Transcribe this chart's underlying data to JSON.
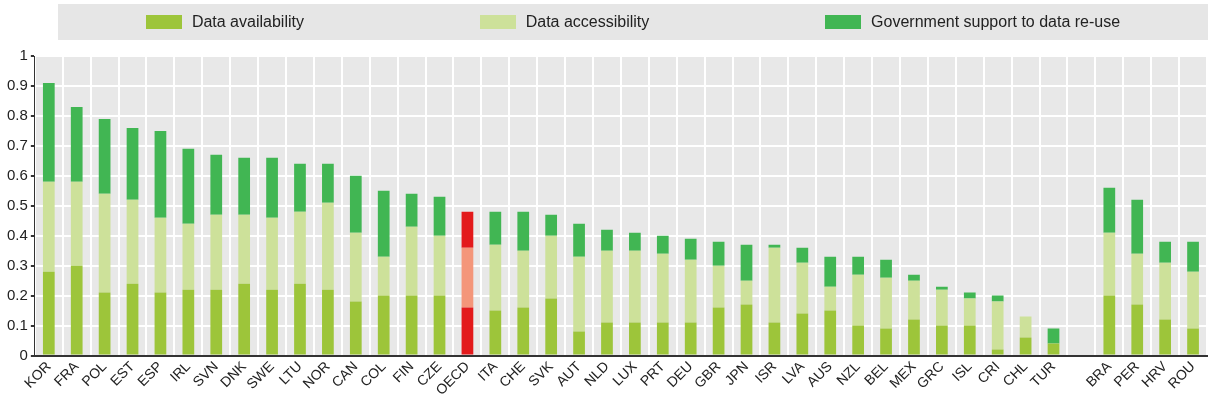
{
  "chart_data": {
    "type": "bar",
    "stacked": true,
    "grid": true,
    "legend": "top",
    "categories": [
      "KOR",
      "FRA",
      "POL",
      "EST",
      "ESP",
      "IRL",
      "SVN",
      "DNK",
      "SWE",
      "LTU",
      "NOR",
      "CAN",
      "COL",
      "FIN",
      "CZE",
      "OECD",
      "ITA",
      "CHE",
      "SVK",
      "AUT",
      "NLD",
      "LUX",
      "PRT",
      "DEU",
      "GBR",
      "JPN",
      "ISR",
      "LVA",
      "AUS",
      "NZL",
      "BEL",
      "MEX",
      "GRC",
      "ISL",
      "CRI",
      "CHL",
      "TUR",
      null,
      "BRA",
      "PER",
      "HRV",
      "ROU"
    ],
    "ylim": [
      0,
      1
    ],
    "yticks": [
      0,
      0.1,
      0.2,
      0.3,
      0.4,
      0.5,
      0.6,
      0.7,
      0.8,
      0.9,
      1
    ],
    "series": [
      {
        "name": "Data availability",
        "color": "#9dc53a",
        "colors": [
          "#9dc53a",
          "#9dc53a",
          "#9dc53a",
          "#9dc53a",
          "#9dc53a",
          "#9dc53a",
          "#9dc53a",
          "#9dc53a",
          "#9dc53a",
          "#9dc53a",
          "#9dc53a",
          "#9dc53a",
          "#9dc53a",
          "#9dc53a",
          "#9dc53a",
          "#e31a1c",
          "#9dc53a",
          "#9dc53a",
          "#9dc53a",
          "#9dc53a",
          "#9dc53a",
          "#9dc53a",
          "#9dc53a",
          "#9dc53a",
          "#9dc53a",
          "#9dc53a",
          "#9dc53a",
          "#9dc53a",
          "#9dc53a",
          "#9dc53a",
          "#9dc53a",
          "#9dc53a",
          "#9dc53a",
          "#9dc53a",
          "#9dc53a",
          "#9dc53a",
          "#9dc53a",
          "#9dc53a",
          "#9dc53a",
          "#9dc53a",
          "#9dc53a",
          "#9dc53a"
        ],
        "values": [
          0.28,
          0.3,
          0.21,
          0.24,
          0.21,
          0.22,
          0.22,
          0.24,
          0.22,
          0.24,
          0.22,
          0.18,
          0.2,
          0.2,
          0.2,
          0.16,
          0.15,
          0.16,
          0.19,
          0.08,
          0.11,
          0.11,
          0.11,
          0.11,
          0.16,
          0.17,
          0.11,
          0.14,
          0.15,
          0.1,
          0.09,
          0.12,
          0.1,
          0.1,
          0.02,
          0.06,
          0.04,
          null,
          0.2,
          0.17,
          0.12,
          0.09
        ]
      },
      {
        "name": "Data accessibility",
        "color": "#cde19a",
        "colors": [
          "#cde19a",
          "#cde19a",
          "#cde19a",
          "#cde19a",
          "#cde19a",
          "#cde19a",
          "#cde19a",
          "#cde19a",
          "#cde19a",
          "#cde19a",
          "#cde19a",
          "#cde19a",
          "#cde19a",
          "#cde19a",
          "#cde19a",
          "#f4967a",
          "#cde19a",
          "#cde19a",
          "#cde19a",
          "#cde19a",
          "#cde19a",
          "#cde19a",
          "#cde19a",
          "#cde19a",
          "#cde19a",
          "#cde19a",
          "#cde19a",
          "#cde19a",
          "#cde19a",
          "#cde19a",
          "#cde19a",
          "#cde19a",
          "#cde19a",
          "#cde19a",
          "#cde19a",
          "#cde19a",
          "#cde19a",
          "#cde19a",
          "#cde19a",
          "#cde19a",
          "#cde19a",
          "#cde19a"
        ],
        "values": [
          0.3,
          0.28,
          0.33,
          0.28,
          0.25,
          0.22,
          0.25,
          0.23,
          0.24,
          0.24,
          0.29,
          0.23,
          0.13,
          0.23,
          0.2,
          0.2,
          0.22,
          0.19,
          0.21,
          0.25,
          0.24,
          0.24,
          0.23,
          0.21,
          0.14,
          0.08,
          0.25,
          0.17,
          0.08,
          0.17,
          0.17,
          0.13,
          0.12,
          0.09,
          0.16,
          0.07,
          0,
          null,
          0.21,
          0.17,
          0.19,
          0.19
        ]
      },
      {
        "name": "Government support to data re-use",
        "color": "#41b653",
        "colors": [
          "#41b653",
          "#41b653",
          "#41b653",
          "#41b653",
          "#41b653",
          "#41b653",
          "#41b653",
          "#41b653",
          "#41b653",
          "#41b653",
          "#41b653",
          "#41b653",
          "#41b653",
          "#41b653",
          "#41b653",
          "#e31a1c",
          "#41b653",
          "#41b653",
          "#41b653",
          "#41b653",
          "#41b653",
          "#41b653",
          "#41b653",
          "#41b653",
          "#41b653",
          "#41b653",
          "#41b653",
          "#41b653",
          "#41b653",
          "#41b653",
          "#41b653",
          "#41b653",
          "#41b653",
          "#41b653",
          "#41b653",
          "#41b653",
          "#41b653",
          "#41b653",
          "#41b653",
          "#41b653",
          "#41b653",
          "#41b653"
        ],
        "values": [
          0.33,
          0.25,
          0.25,
          0.24,
          0.29,
          0.25,
          0.2,
          0.19,
          0.2,
          0.16,
          0.13,
          0.19,
          0.22,
          0.11,
          0.13,
          0.12,
          0.11,
          0.13,
          0.07,
          0.11,
          0.07,
          0.06,
          0.06,
          0.07,
          0.08,
          0.12,
          0.01,
          0.05,
          0.1,
          0.06,
          0.06,
          0.02,
          0.01,
          0.02,
          0.02,
          0,
          0.05,
          null,
          0.15,
          0.18,
          0.07,
          0.1
        ]
      }
    ]
  }
}
